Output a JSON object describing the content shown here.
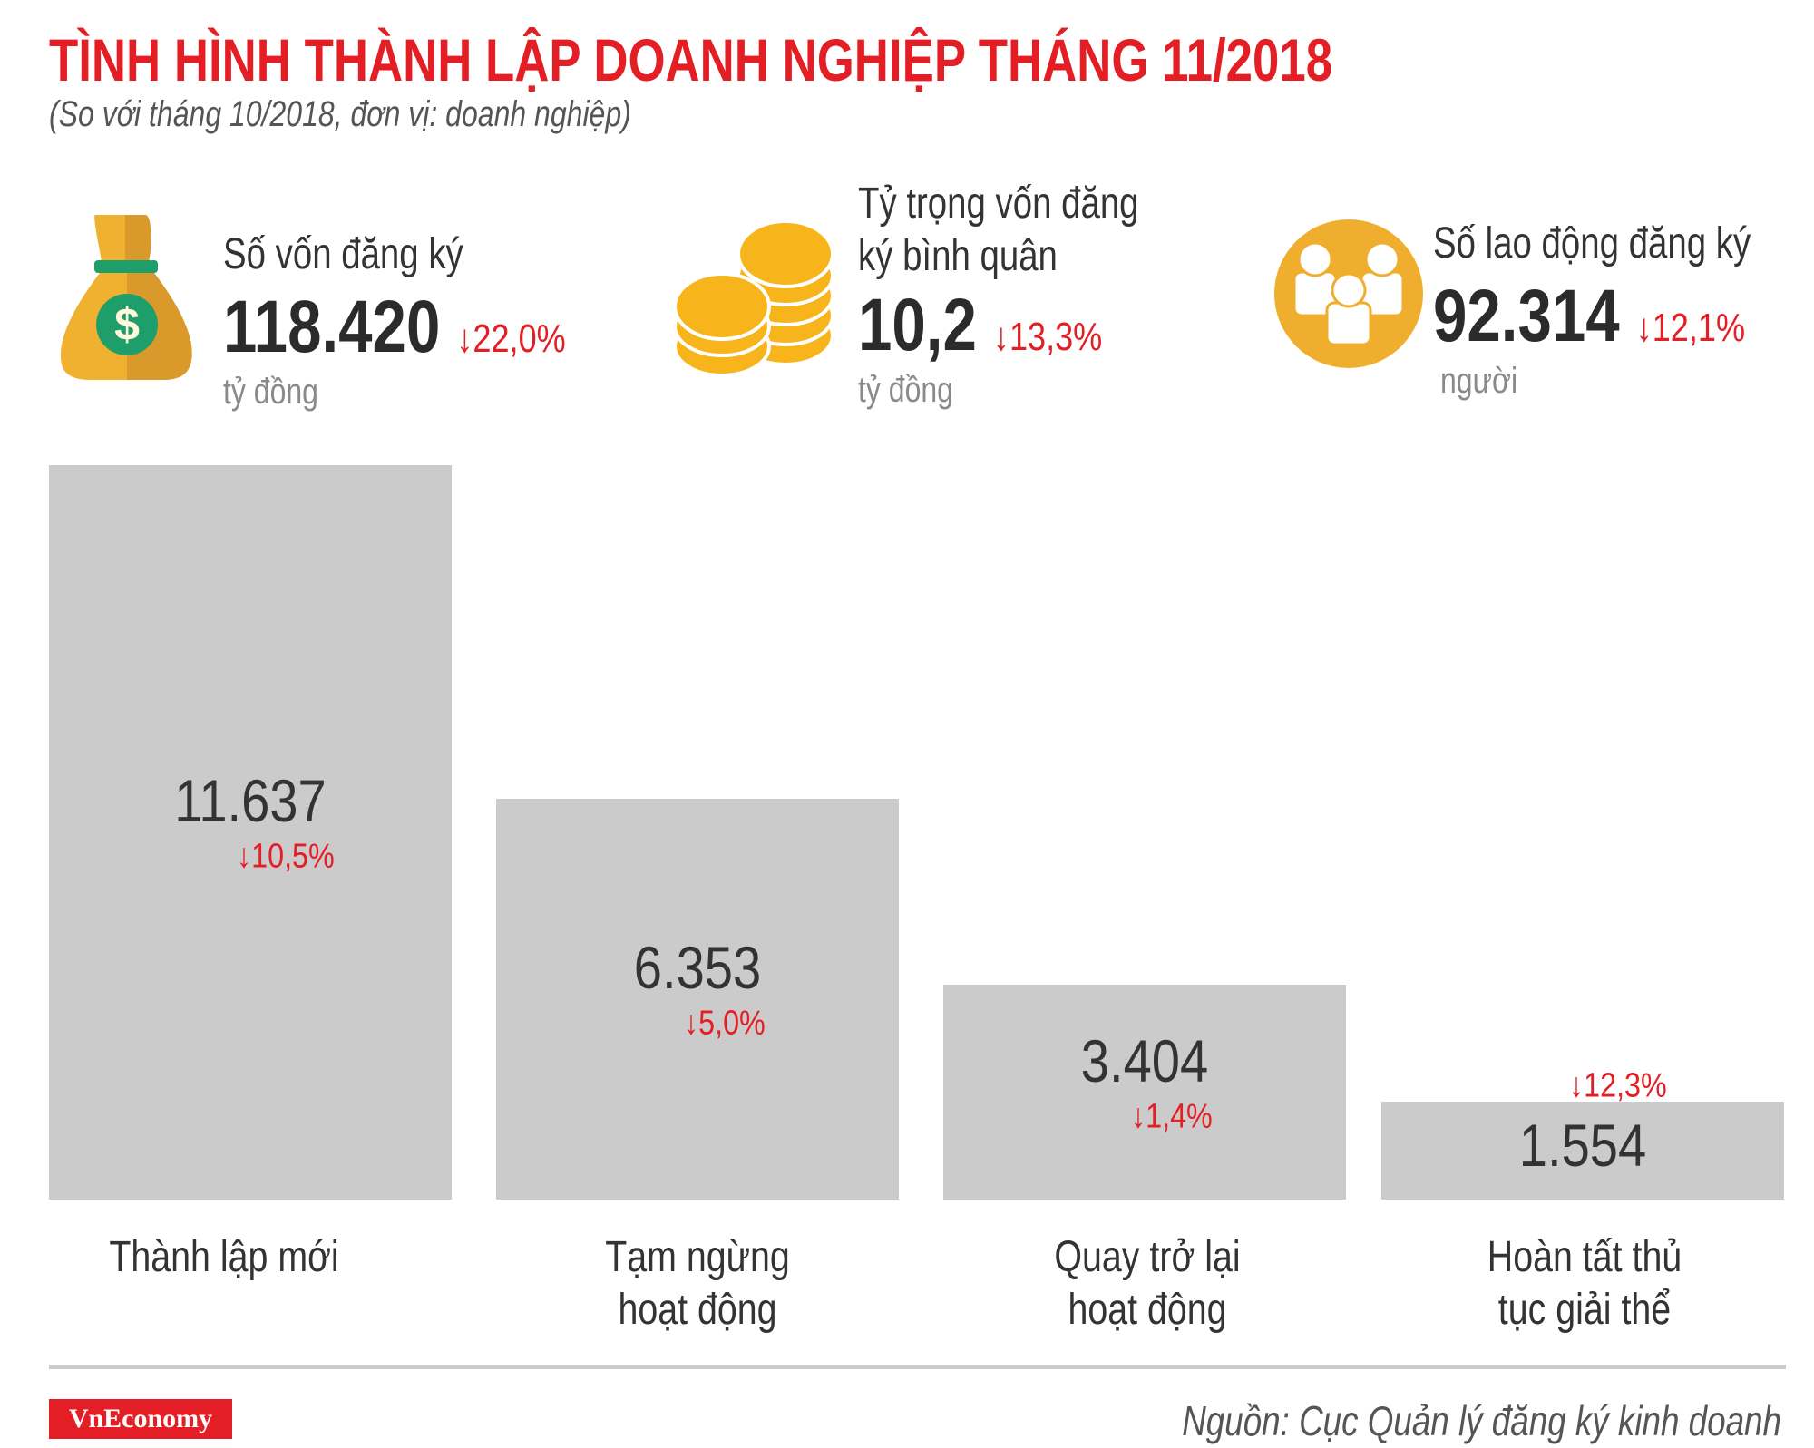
{
  "title": "TÌNH HÌNH THÀNH LẬP DOANH NGHIỆP THÁNG 11/2018",
  "subtitle": "(So với tháng 10/2018, đơn vị: doanh nghiệp)",
  "kpis": [
    {
      "label": "Số vốn đăng ký",
      "value": "118.420",
      "change": "↓22,0%",
      "unit": "tỷ đồng",
      "icon": "money-bag-icon"
    },
    {
      "label_line1": "Tỷ trọng vốn đăng",
      "label_line2": "ký bình quân",
      "value": "10,2",
      "change": "↓13,3%",
      "unit": "tỷ đồng",
      "icon": "coins-icon"
    },
    {
      "label": "Số lao động đăng ký",
      "value": "92.314",
      "change": "↓12,1%",
      "unit": "người",
      "icon": "people-icon"
    }
  ],
  "colors": {
    "accent": "#e31e24",
    "bar": "#cccbcc",
    "icon": "#f0b030"
  },
  "chart_data": {
    "type": "bar",
    "categories": [
      "Thành lập mới",
      "Tạm ngừng hoạt động",
      "Quay trở lại hoạt động",
      "Hoàn tất thủ tục giải thể"
    ],
    "category_lines": [
      [
        "Thành lập mới"
      ],
      [
        "Tạm ngừng",
        "hoạt động"
      ],
      [
        "Quay trở lại",
        "hoạt động"
      ],
      [
        "Hoàn tất thủ",
        "tục giải thể"
      ]
    ],
    "values": [
      11637,
      6353,
      3404,
      1554
    ],
    "value_labels": [
      "11.637",
      "6.353",
      "3.404",
      "1.554"
    ],
    "changes": [
      "↓10,5%",
      "↓5,0%",
      "↓1,4%",
      "↓12,3%"
    ],
    "ylim": [
      0,
      11637
    ],
    "grid": false,
    "xlabel": "",
    "ylabel": ""
  },
  "footer": {
    "logo": "VnEconomy",
    "source": "Nguồn: Cục Quản lý đăng ký kinh doanh"
  }
}
